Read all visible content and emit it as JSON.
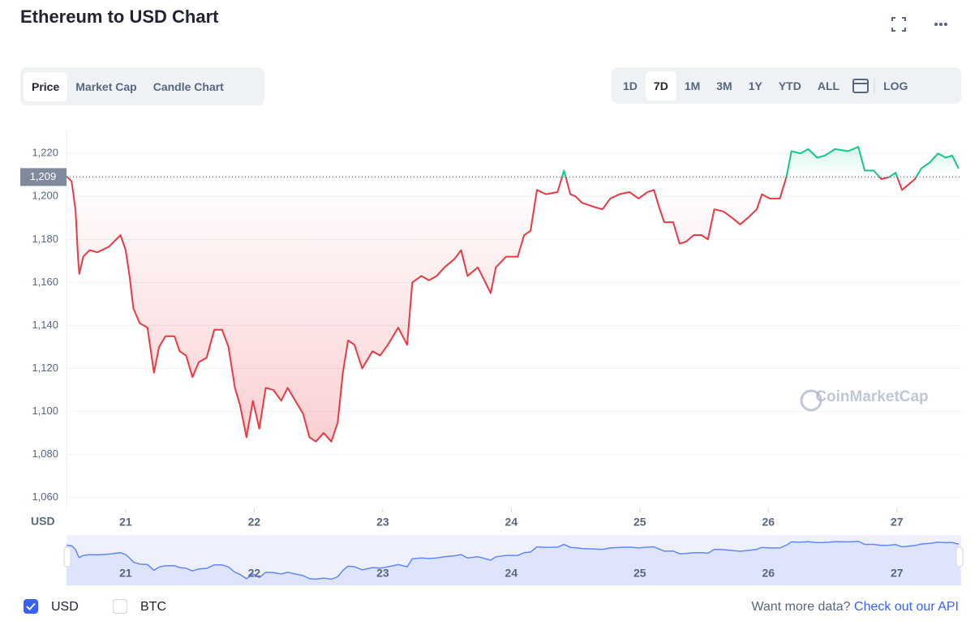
{
  "ui": {
    "title": "Ethereum to USD Chart",
    "tabs": [
      "Price",
      "Market Cap",
      "Candle Chart"
    ],
    "ranges": [
      "1D",
      "7D",
      "1M",
      "3M",
      "1Y",
      "YTD",
      "ALL"
    ],
    "log": "LOG",
    "watermark": "CoinMarketCap",
    "currencies": [
      "USD",
      "BTC"
    ],
    "footer_text": "Want more data?",
    "footer_link": "Check out our API"
  },
  "chart_data": {
    "type": "line",
    "y_axis_label": "USD",
    "x": [
      20.54,
      20.58,
      20.61,
      20.63,
      20.64,
      20.67,
      20.72,
      20.78,
      20.87,
      20.96,
      21.0,
      21.03,
      21.06,
      21.11,
      21.17,
      21.22,
      21.26,
      21.31,
      21.38,
      21.42,
      21.47,
      21.52,
      21.57,
      21.63,
      21.69,
      21.75,
      21.8,
      21.85,
      21.89,
      21.94,
      21.99,
      22.04,
      22.09,
      22.15,
      22.21,
      22.26,
      22.32,
      22.38,
      22.43,
      22.48,
      22.54,
      22.6,
      22.65,
      22.69,
      22.73,
      22.78,
      22.84,
      22.92,
      22.98,
      23.04,
      23.12,
      23.19,
      23.23,
      23.3,
      23.36,
      23.42,
      23.48,
      23.56,
      23.61,
      23.66,
      23.74,
      23.79,
      23.84,
      23.88,
      23.96,
      24.05,
      24.1,
      24.15,
      24.2,
      24.27,
      24.36,
      24.41,
      24.46,
      24.5,
      24.55,
      24.65,
      24.71,
      24.77,
      24.84,
      24.92,
      24.99,
      25.06,
      25.11,
      25.15,
      25.19,
      25.26,
      25.31,
      25.36,
      25.42,
      25.48,
      25.53,
      25.58,
      25.65,
      25.72,
      25.78,
      25.84,
      25.91,
      25.95,
      26.01,
      26.09,
      26.14,
      26.18,
      26.25,
      26.31,
      26.38,
      26.44,
      26.52,
      26.62,
      26.7,
      26.75,
      26.82,
      26.88,
      26.94,
      26.99,
      27.04,
      27.1,
      27.14,
      27.19,
      27.26,
      27.32,
      27.38,
      27.43,
      27.48
    ],
    "values": [
      1209.4,
      1207,
      1193.6,
      1171,
      1164,
      1172,
      1175,
      1174,
      1176.6,
      1182,
      1175,
      1163,
      1148,
      1141,
      1139,
      1118,
      1130,
      1135,
      1135,
      1128,
      1126,
      1116,
      1123,
      1125,
      1138,
      1138,
      1130,
      1111,
      1103,
      1088,
      1105,
      1092,
      1111,
      1110,
      1105,
      1111,
      1105,
      1099,
      1088,
      1086,
      1090,
      1086,
      1095,
      1118,
      1133,
      1131,
      1120,
      1128,
      1126,
      1131,
      1139,
      1131,
      1160,
      1163,
      1161,
      1163,
      1167,
      1171,
      1175,
      1163,
      1167,
      1161,
      1155,
      1167,
      1172,
      1172,
      1182,
      1184,
      1203,
      1201,
      1202,
      1212,
      1201,
      1200,
      1197,
      1195,
      1194,
      1199,
      1201,
      1202,
      1199,
      1202,
      1203,
      1195,
      1188,
      1188,
      1178,
      1179,
      1182,
      1182,
      1180,
      1194,
      1193,
      1190,
      1187,
      1190,
      1194,
      1201,
      1199,
      1199,
      1209,
      1221,
      1220,
      1222,
      1218,
      1219,
      1222,
      1221,
      1223,
      1212,
      1212,
      1208,
      1209,
      1211,
      1203,
      1206,
      1208,
      1213,
      1216,
      1220,
      1218,
      1219,
      1213
    ],
    "current_price": {
      "value": 1209,
      "label": "1,209"
    },
    "up_color": "#16c784",
    "down_color": "#ea3943",
    "xlim": [
      20.54,
      27.5
    ],
    "xticks": [
      21,
      22,
      23,
      24,
      25,
      26,
      27
    ],
    "ylim": [
      1055,
      1231
    ],
    "yticks": [
      {
        "value": 1060,
        "label": "1,060"
      },
      {
        "value": 1080,
        "label": "1,080"
      },
      {
        "value": 1100,
        "label": "1,100"
      },
      {
        "value": 1120,
        "label": "1,120"
      },
      {
        "value": 1140,
        "label": "1,140"
      },
      {
        "value": 1160,
        "label": "1,160"
      },
      {
        "value": 1180,
        "label": "1,180"
      },
      {
        "value": 1200,
        "label": "1,200"
      },
      {
        "value": 1220,
        "label": "1,220"
      }
    ],
    "grid": true
  }
}
